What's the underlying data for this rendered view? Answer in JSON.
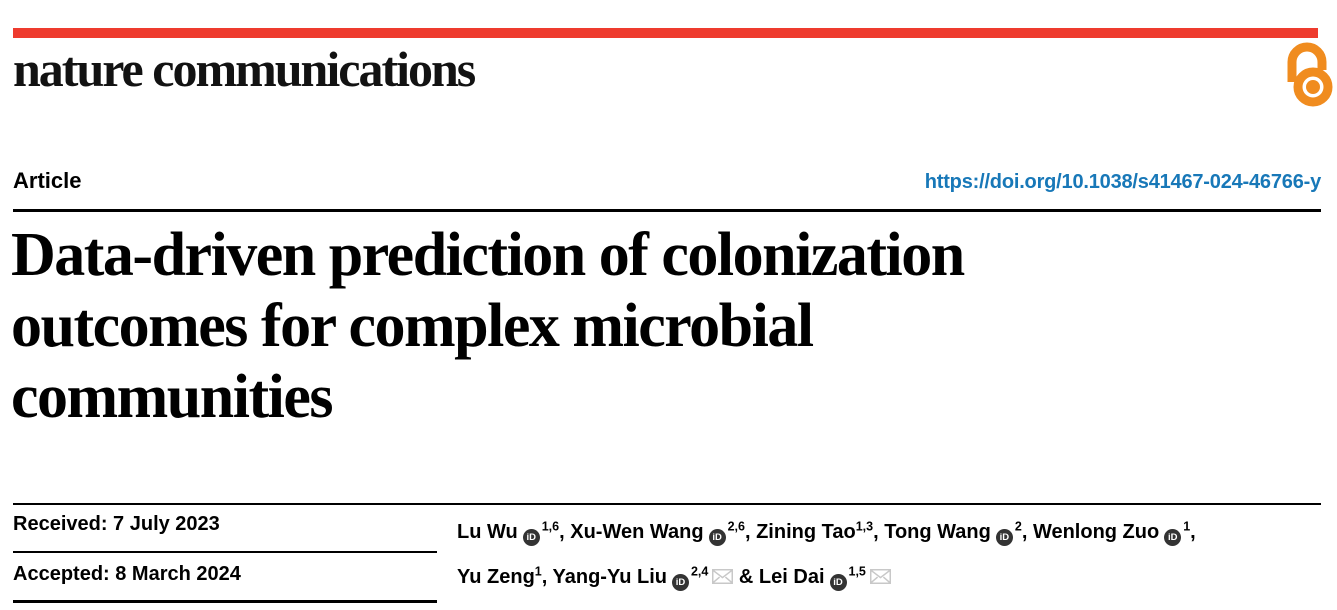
{
  "masthead": {
    "journal": "nature communications"
  },
  "header": {
    "article_label": "Article",
    "doi": "https://doi.org/10.1038/s41467-024-46766-y"
  },
  "title_lines": [
    "Data-driven prediction of colonization",
    "outcomes for complex microbial",
    "communities"
  ],
  "dates": {
    "received": "Received: 7 July 2023",
    "accepted": "Accepted: 8 March 2024"
  },
  "authors": {
    "lines": [
      [
        {
          "name": "Lu Wu",
          "orcid": true,
          "sup": "1,6",
          "envelope": false,
          "sep": ", "
        },
        {
          "name": "Xu-Wen Wang",
          "orcid": true,
          "sup": "2,6",
          "envelope": false,
          "sep": ", "
        },
        {
          "name": "Zining Tao",
          "orcid": false,
          "sup": "1,3",
          "envelope": false,
          "sep": ", "
        },
        {
          "name": "Tong Wang",
          "orcid": true,
          "sup": "2",
          "envelope": false,
          "sep": ", "
        },
        {
          "name": "Wenlong Zuo",
          "orcid": true,
          "sup": "1",
          "envelope": false,
          "sep": ","
        }
      ],
      [
        {
          "name": "Yu Zeng",
          "orcid": false,
          "sup": "1",
          "envelope": false,
          "sep": ", "
        },
        {
          "name": "Yang-Yu Liu",
          "orcid": true,
          "sup": "2,4",
          "envelope": true,
          "sep": " & "
        },
        {
          "name": "Lei Dai",
          "orcid": true,
          "sup": "1,5",
          "envelope": true,
          "sep": ""
        }
      ]
    ]
  },
  "icons": {
    "orcid_glyph": "iD",
    "open_access": "open-access-icon",
    "envelope": "envelope-icon"
  },
  "colors": {
    "accent_red": "#ee3b2e",
    "oa_orange": "#f08c1f",
    "link_blue": "#1878b8",
    "text_black": "#000000",
    "envelope_gray": "#c8c8c8",
    "orcid_dark": "#333333"
  }
}
